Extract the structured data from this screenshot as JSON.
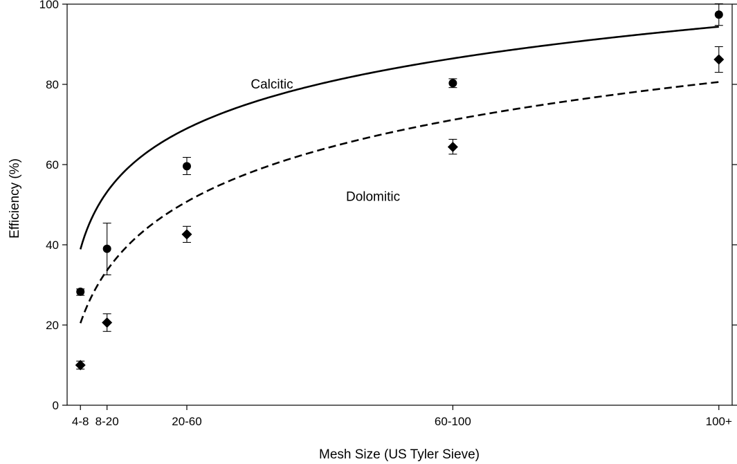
{
  "chart_data": {
    "type": "scatter",
    "title": "",
    "xlabel": "Mesh Size (US Tyler Sieve)",
    "ylabel": "Efficiency (%)",
    "x_ticks": [
      {
        "label": "4-8",
        "x": 0
      },
      {
        "label": "8-20",
        "x": 0.5
      },
      {
        "label": "20-60",
        "x": 2
      },
      {
        "label": "60-100",
        "x": 7
      },
      {
        "label": "100+",
        "x": 12
      }
    ],
    "xlim": [
      -0.25,
      12.25
    ],
    "ylim": [
      0,
      100
    ],
    "y_ticks": [
      0,
      20,
      40,
      60,
      80,
      100
    ],
    "grid": false,
    "annotations": [
      {
        "text": "Calcitic",
        "x": 3.6,
        "y": 80
      },
      {
        "text": "Dolomitic",
        "x": 5.5,
        "y": 52
      }
    ],
    "series": [
      {
        "name": "Calcitic",
        "marker": "circle",
        "color": "#000000",
        "line_style": "solid",
        "points": [
          {
            "category": "4-8",
            "y": 28.3,
            "err_low": 27.4,
            "err_high": 29.0
          },
          {
            "category": "8-20",
            "y": 39.0,
            "err_low": 32.5,
            "err_high": 45.4
          },
          {
            "category": "20-60",
            "y": 59.6,
            "err_low": 57.5,
            "err_high": 61.8
          },
          {
            "category": "60-100",
            "y": 80.3,
            "err_low": 79.2,
            "err_high": 81.4
          },
          {
            "category": "100+",
            "y": 97.4,
            "err_low": 94.7,
            "err_high": 100.1
          }
        ],
        "fit": {
          "a": 56.2,
          "b": 35.0,
          "c": 0.32,
          "x_start": 0.0,
          "x_end": 12
        }
      },
      {
        "name": "Dolomitic",
        "marker": "diamond",
        "color": "#000000",
        "line_style": "dashed",
        "points": [
          {
            "category": "4-8",
            "y": 10.0,
            "err_low": 9.0,
            "err_high": 11.0
          },
          {
            "category": "8-20",
            "y": 20.6,
            "err_low": 18.4,
            "err_high": 22.8
          },
          {
            "category": "20-60",
            "y": 42.6,
            "err_low": 40.6,
            "err_high": 44.6
          },
          {
            "category": "60-100",
            "y": 64.4,
            "err_low": 62.6,
            "err_high": 66.3
          },
          {
            "category": "100+",
            "y": 86.2,
            "err_low": 83.0,
            "err_high": 89.4
          }
        ],
        "fit": {
          "a": 34.0,
          "b": 42.5,
          "c": 0.48,
          "x_start": 0.0,
          "x_end": 12
        }
      }
    ]
  }
}
